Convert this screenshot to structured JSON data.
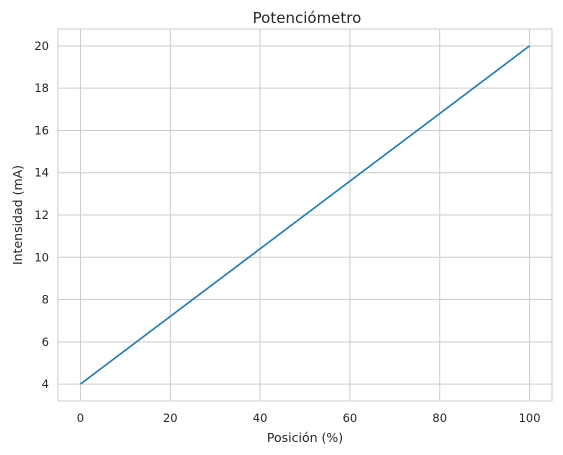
{
  "chart_data": {
    "type": "line",
    "title": "Potenciómetro",
    "xlabel": "Posición (%)",
    "ylabel": "Intensidad (mA)",
    "xlim": [
      -5,
      105
    ],
    "ylim": [
      3.2,
      20.8
    ],
    "xticks": [
      0,
      20,
      40,
      60,
      80,
      100
    ],
    "yticks": [
      4,
      6,
      8,
      10,
      12,
      14,
      16,
      18,
      20
    ],
    "grid": true,
    "series": [
      {
        "color": "#1f77b4",
        "x": [
          0,
          100
        ],
        "y": [
          4,
          20
        ]
      }
    ]
  }
}
